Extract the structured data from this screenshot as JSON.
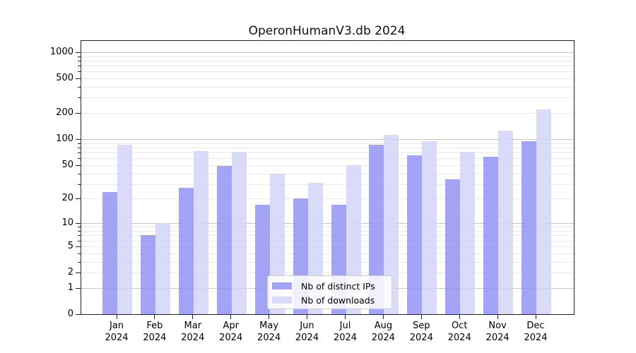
{
  "title": "OperonHumanV3.db 2024",
  "chart_data": {
    "type": "bar",
    "title": "OperonHumanV3.db 2024",
    "categories": [
      "Jan",
      "Feb",
      "Mar",
      "Apr",
      "May",
      "Jun",
      "Jul",
      "Aug",
      "Sep",
      "Oct",
      "Nov",
      "Dec"
    ],
    "x_tick_year": "2024",
    "series": [
      {
        "name": "Nb of distinct IPs",
        "color": "#a6a6f7",
        "fill": "rgba(144,144,245,0.82)",
        "values": [
          24,
          7,
          27,
          49,
          17,
          20,
          17,
          86,
          65,
          34,
          63,
          94
        ]
      },
      {
        "name": "Nb of downloads",
        "color": "#dbdbf9",
        "fill": "rgba(210,210,248,0.82)",
        "values": [
          86,
          10,
          73,
          71,
          40,
          31,
          50,
          113,
          95,
          71,
          126,
          220
        ]
      }
    ],
    "yscale": "log1p",
    "ylim": [
      0,
      1300
    ],
    "y_tick_values": [
      0,
      1,
      2,
      5,
      10,
      20,
      50,
      100,
      200,
      500,
      1000
    ],
    "y_tick_labels": [
      "0",
      "1",
      "2",
      "5",
      "10",
      "20",
      "50",
      "100",
      "200",
      "500",
      "1000"
    ],
    "grid": {
      "orientation": "horizontal",
      "major_values": [
        1,
        10,
        100,
        1000
      ],
      "minor_values": [
        2,
        3,
        4,
        5,
        6,
        7,
        8,
        9,
        20,
        30,
        40,
        50,
        60,
        70,
        80,
        90,
        200,
        300,
        400,
        500,
        600,
        700,
        800,
        900
      ]
    },
    "legend": {
      "position": "lower center"
    }
  }
}
